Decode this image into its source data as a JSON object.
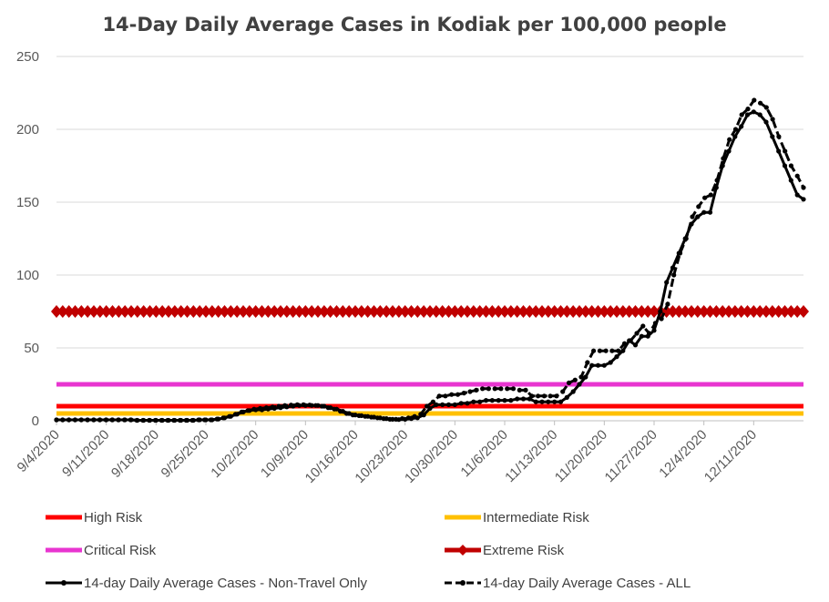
{
  "chart_data": {
    "type": "line",
    "title": "14-Day Daily Average Cases in Kodiak per 100,000 people",
    "xlabel": "",
    "ylabel": "",
    "ylim": [
      0,
      250
    ],
    "y_ticks": [
      0,
      50,
      100,
      150,
      200,
      250
    ],
    "x_start": "9/4/2020",
    "x_end": "12/18/2020",
    "x_tick_labels": [
      "9/4/2020",
      "9/11/2020",
      "9/18/2020",
      "9/25/2020",
      "10/2/2020",
      "10/9/2020",
      "10/16/2020",
      "10/23/2020",
      "10/30/2020",
      "11/6/2020",
      "11/13/2020",
      "11/20/2020",
      "11/27/2020",
      "12/4/2020",
      "12/11/2020"
    ],
    "grid": "horizontal",
    "legend_position": "bottom",
    "risk_lines": [
      {
        "name": "High Risk",
        "value": 10,
        "color": "#FF0000",
        "style": "line"
      },
      {
        "name": "Intermediate Risk",
        "value": 5,
        "color": "#FFC000",
        "style": "line"
      },
      {
        "name": "Critical Risk",
        "value": 25,
        "color": "#E835D0",
        "style": "line"
      },
      {
        "name": "Extreme Risk",
        "value": 75,
        "color": "#C00000",
        "style": "diamond"
      }
    ],
    "series": [
      {
        "name": "14-day Daily Average Cases - Non-Travel Only",
        "color": "#000000",
        "style": "solid",
        "values": [
          0.6,
          0.6,
          0.6,
          0.6,
          0.6,
          0.6,
          0.6,
          0.6,
          0.6,
          0.6,
          0.6,
          0.6,
          0.6,
          0.3,
          0.3,
          0.3,
          0.3,
          0.3,
          0.3,
          0.3,
          0.3,
          0.3,
          0.3,
          0.6,
          0.6,
          0.6,
          1.2,
          2,
          3,
          4.5,
          6,
          7,
          7.5,
          7.5,
          8,
          8.5,
          9,
          9.5,
          10,
          10.5,
          10.5,
          10.5,
          10.5,
          10,
          9,
          8,
          6.5,
          5,
          4,
          3.5,
          3,
          2.5,
          2,
          1.5,
          1,
          0.8,
          1,
          1.5,
          2,
          4,
          8.5,
          11,
          11,
          11,
          11,
          12,
          12,
          13,
          13,
          14,
          14,
          14,
          14,
          14,
          15,
          15,
          15,
          13,
          13,
          13,
          13,
          13,
          16,
          20,
          25,
          30,
          38,
          38,
          38,
          40,
          44,
          48,
          55,
          52,
          58,
          58,
          62,
          75,
          95,
          105,
          115,
          125,
          135,
          140,
          143,
          143,
          160,
          175,
          185,
          195,
          202,
          210,
          212,
          210,
          205,
          195,
          185,
          175,
          165,
          155,
          152
        ]
      },
      {
        "name": "14-day Daily Average Cases - ALL",
        "color": "#000000",
        "style": "dash",
        "values": [
          0.6,
          0.6,
          0.6,
          0.6,
          0.6,
          0.6,
          0.6,
          0.6,
          0.6,
          0.6,
          0.6,
          0.6,
          0.6,
          0.3,
          0.3,
          0.3,
          0.3,
          0.3,
          0.3,
          0.3,
          0.3,
          0.3,
          0.3,
          0.6,
          0.6,
          0.6,
          1.2,
          2,
          3,
          4.5,
          6,
          7,
          8,
          8.5,
          9,
          9.5,
          10,
          10.5,
          10.8,
          11,
          11,
          10.8,
          10.5,
          10,
          9,
          8,
          6.5,
          5,
          4,
          3.5,
          3,
          2.5,
          2,
          1.5,
          1,
          1,
          1.5,
          2,
          3,
          4.5,
          10,
          13,
          17,
          17,
          18,
          18,
          19,
          20,
          21,
          22,
          22,
          22,
          22,
          22,
          22,
          21,
          21,
          17,
          17,
          17,
          17,
          17,
          20,
          26,
          28,
          30,
          40,
          48,
          48,
          48,
          48,
          48,
          53,
          55,
          60,
          65,
          60,
          67,
          70,
          80,
          100,
          115,
          125,
          140,
          147,
          153,
          155,
          165,
          180,
          193,
          200,
          210,
          214,
          220,
          218,
          215,
          207,
          195,
          185,
          175,
          168,
          160
        ]
      }
    ]
  },
  "legend": [
    {
      "key": "high",
      "label": "High Risk"
    },
    {
      "key": "intermediate",
      "label": "Intermediate Risk"
    },
    {
      "key": "critical",
      "label": "Critical Risk"
    },
    {
      "key": "extreme",
      "label": "Extreme Risk"
    },
    {
      "key": "nontravel",
      "label": "14-day Daily Average Cases - Non-Travel Only"
    },
    {
      "key": "all",
      "label": "14-day Daily Average Cases - ALL"
    }
  ]
}
